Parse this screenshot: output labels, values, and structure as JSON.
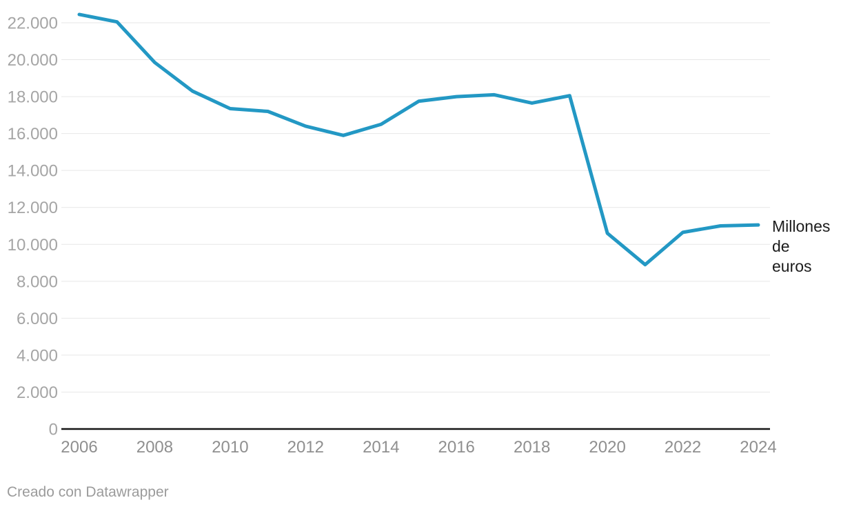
{
  "chart_data": {
    "type": "line",
    "x": [
      2006,
      2007,
      2008,
      2009,
      2010,
      2011,
      2012,
      2013,
      2014,
      2015,
      2016,
      2017,
      2018,
      2019,
      2020,
      2021,
      2022,
      2023,
      2024
    ],
    "series": [
      {
        "name": "Millones de euros",
        "label_lines": [
          "Millones",
          "de",
          "euros"
        ],
        "values": [
          22450,
          22050,
          19850,
          18300,
          17350,
          17200,
          16400,
          15900,
          16500,
          17750,
          18000,
          18100,
          17650,
          18050,
          10600,
          8900,
          10650,
          11000,
          11050
        ]
      }
    ],
    "x_ticks": [
      2006,
      2008,
      2010,
      2012,
      2014,
      2016,
      2018,
      2020,
      2022,
      2024
    ],
    "y_ticks": [
      0,
      2000,
      4000,
      6000,
      8000,
      10000,
      12000,
      14000,
      16000,
      18000,
      20000,
      22000
    ],
    "y_tick_labels": [
      "0",
      "2.000",
      "4.000",
      "6.000",
      "8.000",
      "10.000",
      "12.000",
      "14.000",
      "16.000",
      "18.000",
      "20.000",
      "22.000"
    ],
    "ylim": [
      0,
      22000
    ],
    "grid": "horizontal",
    "legend_position": "right-end-of-line"
  },
  "colors": {
    "line": "#2398c4",
    "grid": "#e7e7e7",
    "axis": "#161616",
    "y_tick_label": "#a5a5a5",
    "x_tick_label": "#8f8f8f",
    "series_label": "#1c1c1c",
    "attribution": "#9b9b9b",
    "background": "#ffffff"
  },
  "footer": {
    "text": "Creado con Datawrapper"
  }
}
